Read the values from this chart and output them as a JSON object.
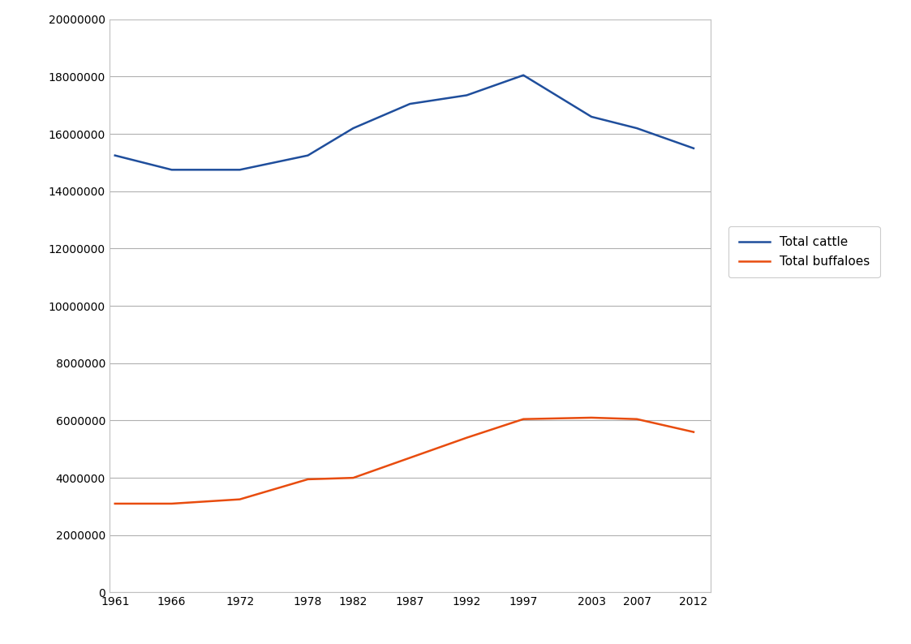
{
  "years": [
    1961,
    1966,
    1972,
    1978,
    1982,
    1987,
    1992,
    1997,
    2003,
    2007,
    2012
  ],
  "total_cattle": [
    15250000,
    14750000,
    14750000,
    15250000,
    16200000,
    17050000,
    17350000,
    18050000,
    16600000,
    16200000,
    15500000
  ],
  "total_buffaloes": [
    3100000,
    3100000,
    3250000,
    3950000,
    4000000,
    4700000,
    5400000,
    6050000,
    6100000,
    6050000,
    5600000
  ],
  "cattle_color": "#1f4e9c",
  "buffalo_color": "#e84c0e",
  "legend_labels": [
    "Total cattle",
    "Total buffaloes"
  ],
  "ylim": [
    0,
    20000000
  ],
  "ytick_step": 2000000,
  "background_color": "#ffffff",
  "grid_color": "#b0b0b0",
  "line_width": 1.8,
  "legend_fontsize": 11,
  "tick_fontsize": 10,
  "figsize": [
    11.23,
    7.94
  ],
  "dpi": 100
}
